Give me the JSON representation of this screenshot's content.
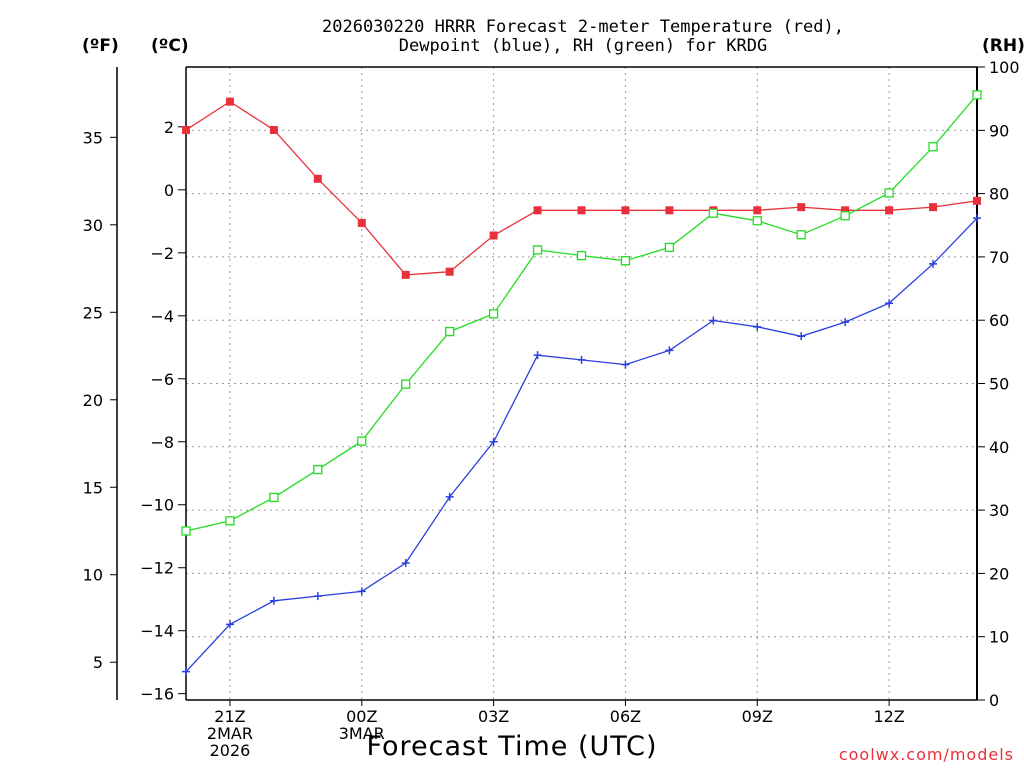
{
  "chart_data": {
    "type": "line",
    "title_line1": "2026030220 HRRR Forecast 2-meter Temperature (red),",
    "title_line2": "Dewpoint (blue), RH (green) for KRDG",
    "xlabel": "Forecast Time (UTC)",
    "watermark": "coolwx.com/models",
    "units": {
      "fahrenheit": "(ºF)",
      "celsius": "(ºC)",
      "rh": "(RH)"
    },
    "x": [
      20,
      21,
      22,
      23,
      24,
      25,
      26,
      27,
      28,
      29,
      30,
      31,
      32,
      33,
      34,
      35,
      36,
      37,
      38
    ],
    "x_range": [
      20,
      38
    ],
    "x_ticks": [
      {
        "x": 21,
        "lines": [
          "21Z",
          "2MAR",
          "2026"
        ]
      },
      {
        "x": 24,
        "lines": [
          "00Z",
          "3MAR"
        ]
      },
      {
        "x": 27,
        "lines": [
          "03Z"
        ]
      },
      {
        "x": 30,
        "lines": [
          "06Z"
        ]
      },
      {
        "x": 33,
        "lines": [
          "09Z"
        ]
      },
      {
        "x": 36,
        "lines": [
          "12Z"
        ]
      }
    ],
    "celsius_axis": {
      "range": [
        -16.2,
        3.9
      ],
      "ticks": [
        2,
        0,
        -2,
        -4,
        -6,
        -8,
        -10,
        -12,
        -14,
        -16
      ]
    },
    "fahrenheit_axis": {
      "ticks": [
        35,
        30,
        25,
        20,
        15,
        10,
        5
      ]
    },
    "rh_axis": {
      "range": [
        0,
        100
      ],
      "ticks": [
        0,
        10,
        20,
        30,
        40,
        50,
        60,
        70,
        80,
        90,
        100
      ]
    },
    "grid": true,
    "series": [
      {
        "name": "Temperature",
        "axis": "celsius",
        "color": "#e8303a",
        "marker": "filled-square",
        "values": [
          1.9,
          2.8,
          1.9,
          0.35,
          -1.05,
          -2.7,
          -2.6,
          -1.45,
          -0.65,
          -0.65,
          -0.65,
          -0.65,
          -0.65,
          -0.65,
          -0.55,
          -0.65,
          -0.65,
          -0.55,
          -0.35
        ]
      },
      {
        "name": "Dewpoint",
        "axis": "celsius",
        "color": "#2a3fe0",
        "marker": "plus",
        "values": [
          -15.3,
          -13.8,
          -13.05,
          -12.9,
          -12.75,
          -11.85,
          -9.75,
          -8.0,
          -5.25,
          -5.4,
          -5.55,
          -5.1,
          -4.15,
          -4.35,
          -4.65,
          -4.2,
          -3.6,
          -2.35,
          -0.9
        ]
      },
      {
        "name": "RH",
        "axis": "rh",
        "color": "#22dd22",
        "marker": "open-square",
        "values": [
          26.7,
          28.3,
          32.0,
          36.4,
          40.9,
          49.9,
          58.2,
          61.0,
          71.1,
          70.2,
          69.4,
          71.5,
          76.9,
          75.7,
          73.5,
          76.5,
          80.1,
          87.4,
          95.6
        ]
      }
    ]
  }
}
